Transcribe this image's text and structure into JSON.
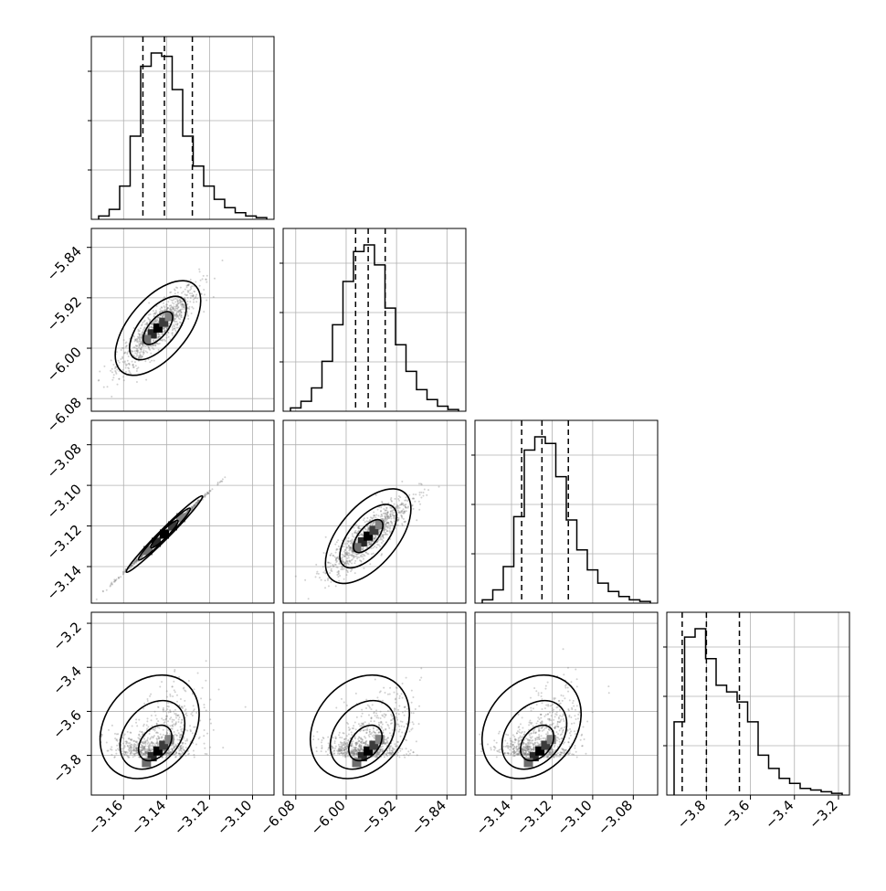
{
  "chart_data": {
    "type": "corner",
    "n_params": 4,
    "grid": true,
    "params": [
      {
        "range": [
          -3.175,
          -3.09
        ],
        "ticks": [
          -3.16,
          -3.14,
          -3.12,
          -3.1
        ],
        "tick_labels": [
          "−3.16",
          "−3.14",
          "−3.12",
          "−3.10"
        ],
        "quantiles": [
          -3.151,
          -3.141,
          -3.128
        ]
      },
      {
        "range": [
          -6.1,
          -5.81
        ],
        "ticks": [
          -6.08,
          -6.0,
          -5.92,
          -5.84
        ],
        "tick_labels": [
          "−6.08",
          "−6.00",
          "−5.92",
          "−5.84"
        ],
        "quantiles": [
          -5.985,
          -5.965,
          -5.938
        ]
      },
      {
        "range": [
          -3.158,
          -3.068
        ],
        "ticks": [
          -3.14,
          -3.12,
          -3.1,
          -3.08
        ],
        "tick_labels": [
          "−3.14",
          "−3.12",
          "−3.10",
          "−3.08"
        ],
        "quantiles": [
          -3.135,
          -3.125,
          -3.112
        ]
      },
      {
        "range": [
          -3.98,
          -3.15
        ],
        "ticks": [
          -3.8,
          -3.6,
          -3.4,
          -3.2
        ],
        "tick_labels": [
          "−3.8",
          "−3.6",
          "−3.4",
          "−3.2"
        ],
        "quantiles": [
          -3.91,
          -3.8,
          -3.65
        ]
      }
    ],
    "histograms": [
      {
        "param": 0,
        "values": [
          0.02,
          0.06,
          0.2,
          0.5,
          0.92,
          1.0,
          0.98,
          0.78,
          0.5,
          0.32,
          0.2,
          0.12,
          0.07,
          0.04,
          0.02,
          0.01
        ]
      },
      {
        "param": 1,
        "values": [
          0.02,
          0.06,
          0.14,
          0.3,
          0.52,
          0.78,
          0.96,
          1.0,
          0.88,
          0.62,
          0.4,
          0.24,
          0.13,
          0.07,
          0.03,
          0.01
        ]
      },
      {
        "param": 2,
        "values": [
          0.02,
          0.08,
          0.22,
          0.52,
          0.92,
          1.0,
          0.96,
          0.76,
          0.5,
          0.32,
          0.2,
          0.12,
          0.07,
          0.04,
          0.02,
          0.01
        ]
      },
      {
        "param": 3,
        "values": [
          0.44,
          0.95,
          1.0,
          0.82,
          0.66,
          0.62,
          0.56,
          0.44,
          0.24,
          0.16,
          0.1,
          0.07,
          0.04,
          0.03,
          0.02,
          0.01
        ]
      }
    ],
    "joint_panels": [
      {
        "x": 0,
        "y": 1,
        "center": [
          -3.144,
          -5.968
        ],
        "spread": [
          0.0095,
          0.034
        ],
        "correlation": 0.88
      },
      {
        "x": 0,
        "y": 2,
        "center": [
          -3.141,
          -3.124
        ],
        "spread": [
          0.0095,
          0.0095
        ],
        "correlation": 0.999
      },
      {
        "x": 1,
        "y": 2,
        "center": [
          -5.965,
          -3.125
        ],
        "spread": [
          0.034,
          0.01
        ],
        "correlation": 0.88
      },
      {
        "x": 0,
        "y": 3,
        "center": [
          -3.144,
          -3.78
        ],
        "spread": [
          0.0095,
          0.12
        ],
        "correlation": 0.55
      },
      {
        "x": 1,
        "y": 3,
        "center": [
          -5.965,
          -3.78
        ],
        "spread": [
          0.034,
          0.12
        ],
        "correlation": 0.55
      },
      {
        "x": 2,
        "y": 3,
        "center": [
          -3.126,
          -3.78
        ],
        "spread": [
          0.0095,
          0.12
        ],
        "correlation": 0.55
      }
    ],
    "legend": "none"
  }
}
